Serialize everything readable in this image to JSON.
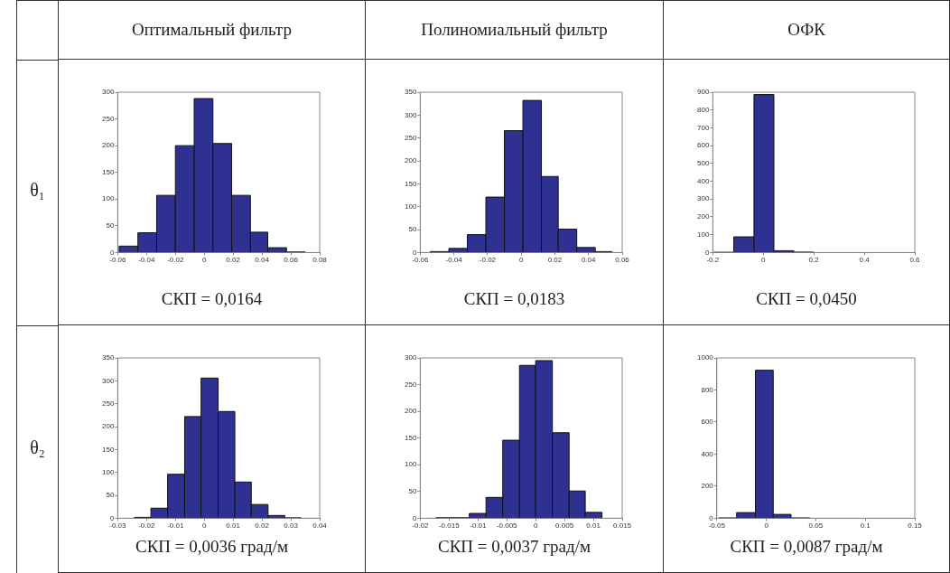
{
  "chart_data": [
    {
      "type": "histogram",
      "title": "Оптимальный фильтр",
      "color": "#2e3192",
      "bins": [
        -0.059,
        -0.046,
        -0.033,
        -0.02,
        -0.007,
        0.006,
        0.019,
        0.032,
        0.044,
        0.057,
        0.07
      ],
      "values": [
        12,
        37,
        107,
        200,
        288,
        204,
        107,
        38,
        9,
        1
      ],
      "xlim": [
        -0.06,
        0.08
      ],
      "xticks": [
        -0.06,
        -0.04,
        -0.02,
        0,
        0.02,
        0.04,
        0.06,
        0.08
      ],
      "ylim": [
        0,
        300
      ],
      "yticks": [
        0,
        50,
        100,
        150,
        200,
        250,
        300
      ],
      "annotations": [
        "СКП = 0,0164"
      ]
    },
    {
      "type": "histogram",
      "title": "Полиномиальный фильтр",
      "color": "#2e3192",
      "bins": [
        -0.054,
        -0.043,
        -0.032,
        -0.021,
        -0.01,
        0.001,
        0.012,
        0.022,
        0.033,
        0.044,
        0.054
      ],
      "values": [
        2,
        9,
        39,
        121,
        266,
        332,
        166,
        51,
        11,
        2
      ],
      "xlim": [
        -0.06,
        0.06
      ],
      "xticks": [
        -0.06,
        -0.04,
        -0.02,
        0,
        0.02,
        0.04,
        0.06
      ],
      "ylim": [
        0,
        350
      ],
      "yticks": [
        0,
        50,
        100,
        150,
        200,
        250,
        300,
        350
      ],
      "annotations": [
        "СКП = 0,0183"
      ]
    },
    {
      "type": "histogram",
      "title": "ОФК",
      "color": "#2e3192",
      "bins": [
        -0.196,
        -0.117,
        -0.037,
        0.042,
        0.121,
        0.2
      ],
      "values": [
        1,
        88,
        887,
        10,
        2
      ],
      "xlim": [
        -0.2,
        0.6
      ],
      "xticks": [
        -0.2,
        0,
        0.2,
        0.4,
        0.6
      ],
      "ylim": [
        0,
        900
      ],
      "yticks": [
        0,
        100,
        200,
        300,
        400,
        500,
        600,
        700,
        800,
        900
      ],
      "annotations": [
        "СКП = 0,0450"
      ]
    },
    {
      "type": "histogram",
      "color": "#2e3192",
      "bins": [
        -0.0242,
        -0.0185,
        -0.0127,
        -0.0068,
        -0.0011,
        0.0048,
        0.0106,
        0.0163,
        0.0221,
        0.0279,
        0.0336
      ],
      "values": [
        2,
        22,
        96,
        222,
        306,
        233,
        79,
        30,
        6,
        1
      ],
      "xlim": [
        -0.03,
        0.04
      ],
      "xticks": [
        -0.03,
        -0.02,
        -0.01,
        0,
        0.01,
        0.02,
        0.03,
        0.04
      ],
      "ylim": [
        0,
        350
      ],
      "yticks": [
        0,
        50,
        100,
        150,
        200,
        250,
        300,
        350
      ],
      "annotations": [
        "СКП = 0,0036 град/м"
      ]
    },
    {
      "type": "histogram",
      "color": "#2e3192",
      "bins": [
        -0.0173,
        -0.0144,
        -0.0115,
        -0.0086,
        -0.0057,
        -0.0028,
        0.0,
        0.0029,
        0.0058,
        0.0086,
        0.0115
      ],
      "values": [
        1,
        1,
        9,
        39,
        146,
        286,
        295,
        160,
        51,
        11
      ],
      "xlim": [
        -0.02,
        0.015
      ],
      "xticks": [
        -0.02,
        -0.015,
        -0.01,
        -0.005,
        0,
        0.005,
        0.01,
        0.015
      ],
      "ylim": [
        0,
        300
      ],
      "yticks": [
        0,
        50,
        100,
        150,
        200,
        250,
        300
      ],
      "annotations": [
        "СКП = 0,0037 град/м"
      ]
    },
    {
      "type": "histogram",
      "color": "#2e3192",
      "bins": [
        -0.048,
        -0.03,
        -0.011,
        0.007,
        0.025,
        0.044
      ],
      "values": [
        2,
        35,
        923,
        24,
        2
      ],
      "xlim": [
        -0.05,
        0.15
      ],
      "xticks": [
        -0.05,
        0,
        0.05,
        0.1,
        0.15
      ],
      "ylim": [
        0,
        1000
      ],
      "yticks": [
        0,
        200,
        400,
        600,
        800,
        1000
      ],
      "annotations": [
        "СКП = 0,0087 град/м"
      ]
    },
    {
      "type": "other",
      "annotations": [
        "θ₁",
        "θ₂"
      ]
    }
  ]
}
